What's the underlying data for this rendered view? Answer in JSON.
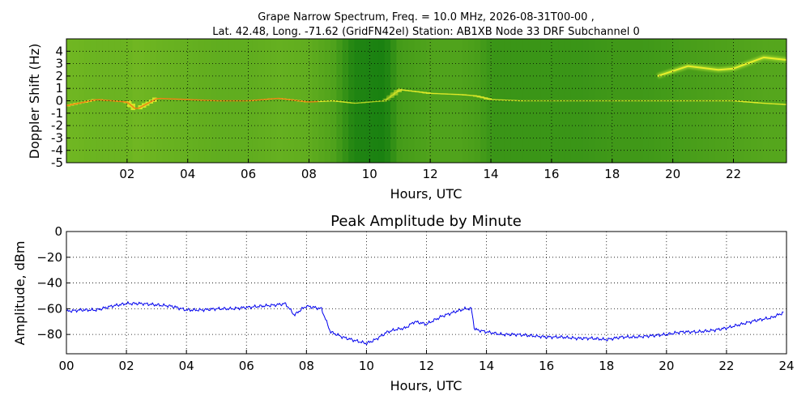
{
  "figure": {
    "title_line1": "Grape Narrow Spectrum, Freq. = 10.0 MHz, 2026-08-31T00-00 ,",
    "title_line2": "Lat.  42.48, Long. -71.62 (GridFN42el) Station: AB1XB Node 33 DRF Subchannel 0"
  },
  "colors": {
    "spectrum_low": "#0f7a0f",
    "spectrum_mid": "#9fd42b",
    "spectrum_high": "#e8ee2a",
    "spectrum_peak": "#f07a12",
    "amplitude_line": "#0000ee",
    "grid": "#000000"
  },
  "chart_data": [
    {
      "type": "heatmap",
      "title": "",
      "xlabel": "Hours, UTC",
      "ylabel": "Doppler Shift (Hz)",
      "xlim": [
        0,
        23.75
      ],
      "ylim": [
        -5,
        5
      ],
      "x_ticks": [
        2,
        4,
        6,
        8,
        10,
        12,
        14,
        16,
        18,
        20,
        22
      ],
      "x_tick_labels": [
        "02",
        "04",
        "06",
        "08",
        "10",
        "12",
        "14",
        "16",
        "18",
        "20",
        "22"
      ],
      "y_ticks": [
        4,
        3,
        2,
        1,
        0,
        -1,
        -2,
        -3,
        -4,
        -5
      ],
      "y_tick_labels": [
        "4",
        "3",
        "2",
        "1",
        "0",
        "-1",
        "-2",
        "-3",
        "-4",
        "-5"
      ],
      "grid": true,
      "colorscale": [
        "dark green (low)",
        "light green",
        "yellow",
        "orange-red (peak)"
      ],
      "carrier_trace": {
        "hours": [
          0,
          1,
          2,
          2.3,
          3,
          4,
          5,
          6,
          7,
          8,
          8.8,
          9.5,
          10.5,
          11,
          12,
          13,
          13.5,
          14,
          15,
          16,
          17,
          18,
          19,
          20,
          21,
          22,
          23,
          23.75
        ],
        "doppler_hz": [
          -0.4,
          0.1,
          -0.1,
          -0.7,
          0.2,
          0.1,
          0.0,
          0.0,
          0.2,
          -0.1,
          0.0,
          -0.2,
          0.0,
          0.9,
          0.6,
          0.5,
          0.4,
          0.1,
          0.0,
          0.0,
          0.0,
          0.0,
          0.0,
          0.0,
          0.0,
          0.0,
          -0.2,
          -0.3
        ],
        "intensity": [
          0.9,
          0.85,
          0.85,
          0.9,
          0.85,
          0.8,
          0.75,
          0.75,
          0.8,
          0.75,
          0.6,
          0.15,
          0.1,
          0.5,
          0.6,
          0.6,
          0.55,
          0.4,
          0.4,
          0.4,
          0.4,
          0.45,
          0.45,
          0.5,
          0.55,
          0.6,
          0.65,
          0.65
        ]
      },
      "upper_trace": {
        "hours": [
          19.5,
          20.5,
          21.5,
          22,
          23,
          23.75
        ],
        "doppler_hz": [
          2.0,
          2.8,
          2.5,
          2.6,
          3.5,
          3.3
        ]
      }
    },
    {
      "type": "line",
      "title": "Peak Amplitude by Minute",
      "xlabel": "Hours, UTC",
      "ylabel": "Amplitude, dBm",
      "xlim": [
        0,
        24
      ],
      "ylim": [
        -95,
        0
      ],
      "x_ticks": [
        0,
        2,
        4,
        6,
        8,
        10,
        12,
        14,
        16,
        18,
        20,
        22,
        24
      ],
      "x_tick_labels": [
        "00",
        "02",
        "04",
        "06",
        "08",
        "10",
        "12",
        "14",
        "16",
        "18",
        "20",
        "22",
        "24"
      ],
      "y_ticks": [
        0,
        -20,
        -40,
        -60,
        -80
      ],
      "y_tick_labels": [
        "0",
        "−20",
        "−40",
        "−60",
        "−80"
      ],
      "grid": true,
      "series": [
        {
          "x": [
            0,
            0.5,
            1,
            1.5,
            2,
            2.5,
            3,
            3.5,
            4,
            4.5,
            5,
            5.5,
            6,
            6.5,
            7,
            7.3,
            7.6,
            7.8,
            8,
            8.5,
            8.8,
            9.2,
            9.5,
            10,
            10.3,
            10.7,
            11,
            11.3,
            11.6,
            12,
            12.5,
            13,
            13.3,
            13.5,
            13.6,
            14,
            14.5,
            15,
            15.5,
            16,
            16.5,
            17,
            17.5,
            18,
            18.5,
            19,
            19.5,
            20,
            20.5,
            21,
            21.5,
            22,
            22.5,
            23,
            23.5,
            23.9
          ],
          "y": [
            -62,
            -61,
            -61,
            -58,
            -56,
            -56,
            -57,
            -58,
            -61,
            -61,
            -60,
            -60,
            -59,
            -58,
            -57,
            -56,
            -65,
            -61,
            -58,
            -60,
            -78,
            -82,
            -84,
            -87,
            -84,
            -78,
            -76,
            -75,
            -70,
            -72,
            -66,
            -62,
            -60,
            -60,
            -76,
            -78,
            -80,
            -80,
            -81,
            -82,
            -82,
            -83,
            -83,
            -84,
            -82,
            -82,
            -81,
            -80,
            -78,
            -78,
            -77,
            -75,
            -72,
            -69,
            -67,
            -63
          ]
        }
      ]
    }
  ]
}
